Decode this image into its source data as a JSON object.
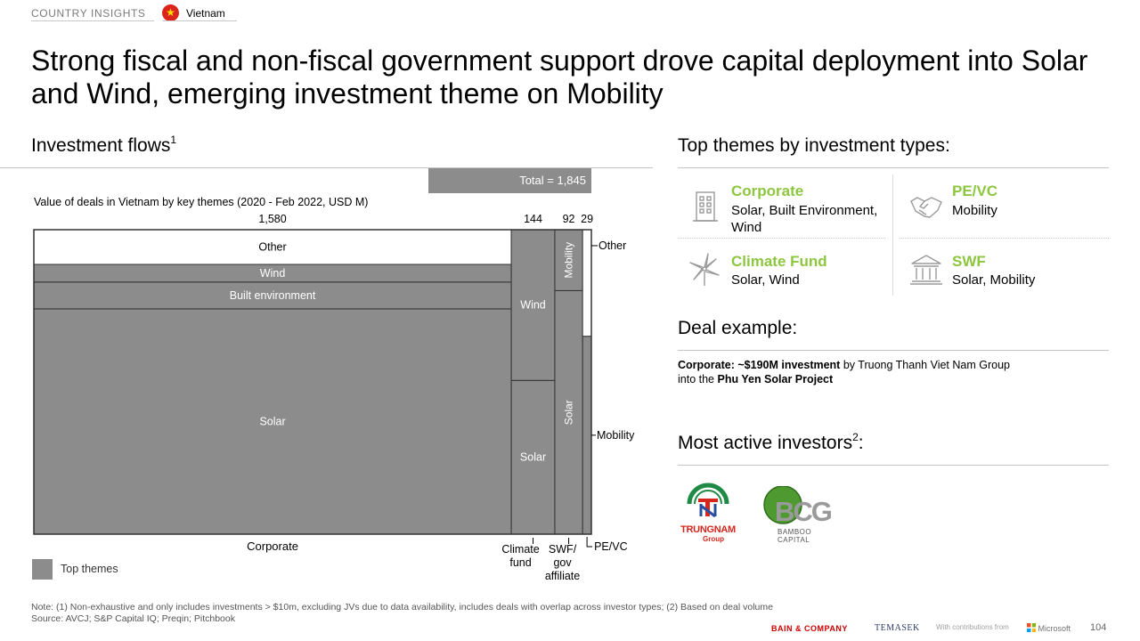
{
  "header": {
    "section": "COUNTRY INSIGHTS",
    "flag_icon": "vietnam-flag-icon",
    "country": "Vietnam"
  },
  "title": "Strong fiscal and non-fiscal government support drove capital deployment into Solar and Wind, emerging investment theme on Mobility",
  "left": {
    "section_title": "Investment flows",
    "section_sup": "1",
    "total_label": "Total = 1,845",
    "subtitle": "Value of deals in Vietnam by key themes (2020 - Feb 2022, USD M)",
    "legend_label": "Top themes"
  },
  "chart_data": {
    "type": "marimekko",
    "title": "Value of deals in Vietnam by key themes (2020 - Feb 2022, USD M)",
    "total": 1845,
    "columns": [
      {
        "name": "Corporate",
        "total": 1580,
        "total_label": "1,580",
        "segments": [
          {
            "name": "Solar",
            "share": 0.74,
            "top_theme": true,
            "label": "Solar"
          },
          {
            "name": "Built environment",
            "share": 0.088,
            "top_theme": true,
            "label": "Built environment"
          },
          {
            "name": "Wind",
            "share": 0.058,
            "top_theme": true,
            "label": "Wind"
          },
          {
            "name": "Other",
            "share": 0.114,
            "top_theme": false,
            "label": "Other"
          }
        ]
      },
      {
        "name": "Climate fund",
        "axis_label": [
          "Climate",
          "fund"
        ],
        "total": 144,
        "total_label": "144",
        "segments": [
          {
            "name": "Solar",
            "share": 0.505,
            "top_theme": true,
            "label": "Solar"
          },
          {
            "name": "Wind",
            "share": 0.495,
            "top_theme": true,
            "label": "Wind"
          }
        ]
      },
      {
        "name": "SWF/gov affiliate",
        "axis_label": [
          "SWF/",
          "gov",
          "affiliate"
        ],
        "total": 92,
        "total_label": "92",
        "segments": [
          {
            "name": "Solar",
            "share": 0.8,
            "top_theme": true,
            "label": "Solar"
          },
          {
            "name": "Mobility",
            "share": 0.2,
            "top_theme": true,
            "label": "Mobility"
          }
        ]
      },
      {
        "name": "PE/VC",
        "axis_label": [
          "PE/VC"
        ],
        "total": 29,
        "total_label": "29",
        "segments": [
          {
            "name": "Mobility",
            "share": 0.65,
            "top_theme": true,
            "label": ""
          },
          {
            "name": "Other",
            "share": 0.35,
            "top_theme": false,
            "label": ""
          }
        ]
      }
    ],
    "callouts": {
      "other": "Other",
      "mobility": "Mobility"
    },
    "colors": {
      "top_theme": "#8c8c8c",
      "other": "#ffffff",
      "border": "#333333"
    }
  },
  "right": {
    "themes_title": "Top themes by investment types:",
    "themes": [
      {
        "name": "Corporate",
        "desc_lines": [
          "Solar, Built Environment,",
          "Wind"
        ],
        "icon": "building-icon"
      },
      {
        "name": "PE/VC",
        "desc_lines": [
          "Mobility"
        ],
        "icon": "handshake-icon"
      },
      {
        "name": "Climate Fund",
        "desc_lines": [
          "Solar, Wind"
        ],
        "icon": "wind-turbine-icon"
      },
      {
        "name": "SWF",
        "desc_lines": [
          "Solar, Mobility"
        ],
        "icon": "government-building-icon"
      }
    ],
    "deal_title": "Deal example:",
    "deal": {
      "bold1": "Corporate: ~$190M investment",
      "text1": " by Truong Thanh Viet Nam Group",
      "text2": "into the ",
      "bold2": "Phu Yen Solar Project"
    },
    "investors_title": "Most active investors",
    "investors_sup": "2",
    "investors_suffix": ":",
    "investors": [
      {
        "logo": "trungnam-group-logo",
        "text": "TRUNGNAM",
        "sub": "Group"
      },
      {
        "logo": "bamboo-capital-logo",
        "text": "BCG",
        "sub": "BAMBOO CAPITAL"
      }
    ]
  },
  "footer": {
    "note": "Note: (1) Non-exhaustive and only includes investments > $10m, excluding JVs due to data availability, includes deals with overlap across investor types; (2) Based on deal volume",
    "source": "Source: AVCJ; S&P Capital IQ; Preqin; Pitchbook",
    "bain": "BAIN & COMPANY",
    "temasek": "TEMASEK",
    "contrib": "With contributions from",
    "microsoft": "Microsoft",
    "page": "104"
  }
}
